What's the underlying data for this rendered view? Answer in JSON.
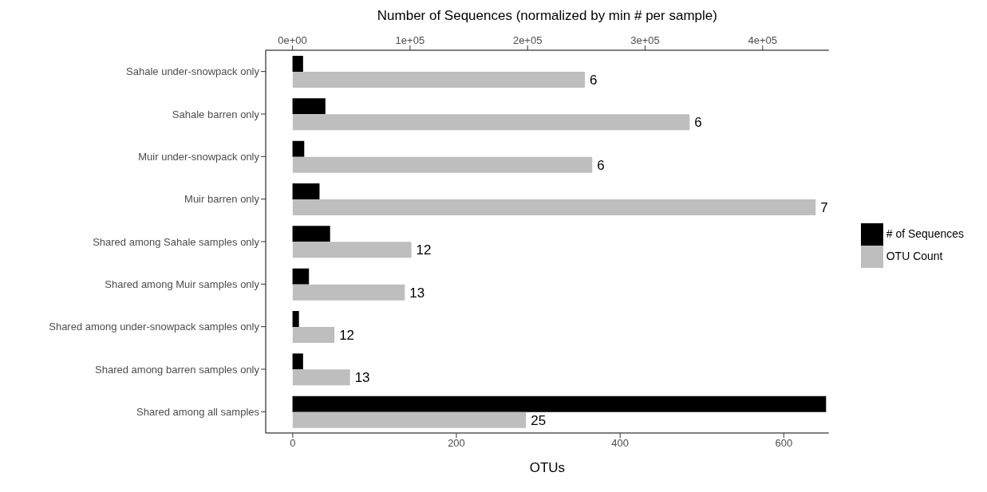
{
  "chart_data": {
    "type": "bar",
    "orientation": "horizontal",
    "xlabel": "OTUs",
    "x2label": "Number of Sequences (normalized by min # per sample)",
    "categories": [
      "Sahale under-snowpack only",
      "Sahale barren only",
      "Muir under-snowpack only",
      "Muir barren only",
      "Shared among Sahale samples only",
      "Shared among Muir samples only",
      "Shared among under-snowpack samples only",
      "Shared among barren samples only",
      "Shared among all samples"
    ],
    "series": [
      {
        "name": "# of Sequences",
        "color": "#000000",
        "axis": "x2",
        "values": [
          9000,
          28000,
          10000,
          23000,
          32000,
          14000,
          5500,
          9000,
          454000
        ]
      },
      {
        "name": "OTU Count",
        "color": "#bebebe",
        "values": [
          357,
          485,
          366,
          639,
          145,
          137,
          51,
          70,
          285
        ]
      }
    ],
    "annotations": [
      {
        "text": "6",
        "x": 357,
        "y": "Sahale under-snowpack only"
      },
      {
        "text": "6",
        "x": 485,
        "y": "Sahale barren only"
      },
      {
        "text": "6",
        "x": 366,
        "y": "Muir under-snowpack only"
      },
      {
        "text": "7",
        "x": 639,
        "y": "Muir barren only"
      },
      {
        "text": "12",
        "x": 145,
        "y": "Shared among Sahale samples only"
      },
      {
        "text": "13",
        "x": 137,
        "y": "Shared among Muir samples only"
      },
      {
        "text": "12",
        "x": 51,
        "y": "Shared among under-snowpack samples only"
      },
      {
        "text": "13",
        "x": 70,
        "y": "Shared among barren samples only"
      },
      {
        "text": "25",
        "x": 285,
        "y": "Shared among all samples"
      }
    ],
    "xlim": [
      -33,
      655
    ],
    "xticks": [
      0,
      200,
      400,
      600
    ],
    "x2lim": [
      -22800,
      456300
    ],
    "x2ticks": [
      {
        "value": 0,
        "label": "0e+00"
      },
      {
        "value": 100000,
        "label": "1e+05"
      },
      {
        "value": 200000,
        "label": "2e+05"
      },
      {
        "value": 300000,
        "label": "3e+05"
      },
      {
        "value": 400000,
        "label": "4e+05"
      }
    ],
    "legend": "right"
  }
}
